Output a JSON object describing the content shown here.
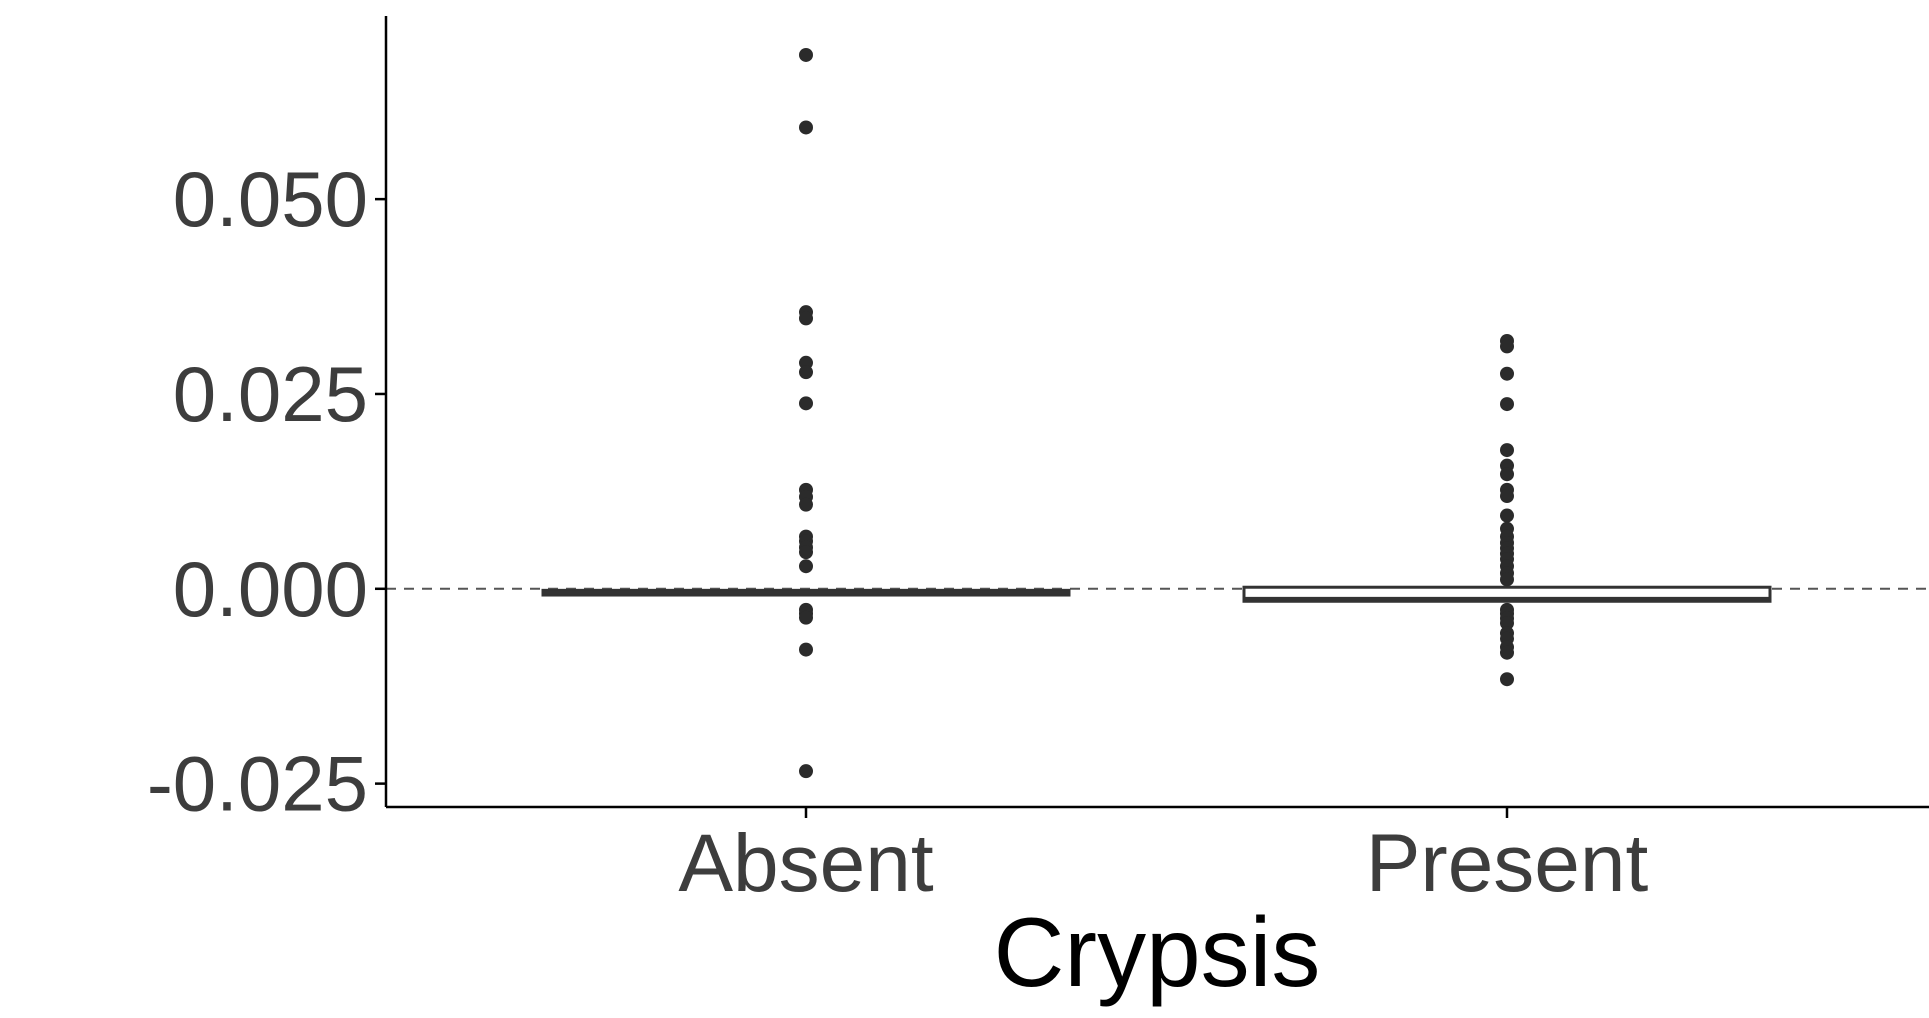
{
  "chart_data": {
    "type": "box",
    "xlabel": "Crypsis",
    "ylabel": "",
    "categories": [
      "Absent",
      "Present"
    ],
    "ylim": [
      -0.028,
      0.0735
    ],
    "yticks": [
      -0.025,
      0.0,
      0.025,
      0.05
    ],
    "ytick_labels": [
      "-0.025",
      "0.000",
      "0.025",
      "0.050"
    ],
    "reference_line": {
      "y": 0.0,
      "style": "dashed"
    },
    "grid": false,
    "boxes": [
      {
        "category": "Absent",
        "q1": -0.0008,
        "median": -0.0005,
        "q3": -0.0002,
        "whisker_low": -0.0008,
        "whisker_high": -0.0002,
        "outliers": [
          0.0685,
          0.0592,
          0.0355,
          0.0347,
          0.029,
          0.0278,
          0.0238,
          0.0127,
          0.0118,
          0.0108,
          0.0067,
          0.0061,
          0.0053,
          0.0047,
          0.0029,
          -0.0027,
          -0.0032,
          -0.0037,
          -0.0078,
          -0.0234
        ]
      },
      {
        "category": "Present",
        "q1": -0.0016,
        "median": -0.0013,
        "q3": 0.0002,
        "whisker_low": -0.0016,
        "whisker_high": 0.0002,
        "outliers": [
          0.0318,
          0.0311,
          0.0276,
          0.0237,
          0.0178,
          0.0158,
          0.0147,
          0.0127,
          0.0119,
          0.0094,
          0.0077,
          0.0067,
          0.0059,
          0.0052,
          0.0045,
          0.0038,
          0.0029,
          0.002,
          0.0012,
          -0.0027,
          -0.0032,
          -0.0038,
          -0.0044,
          -0.0057,
          -0.0064,
          -0.0075,
          -0.0082,
          -0.0116
        ]
      }
    ],
    "colors": {
      "box_fill": "#ffffff",
      "box_stroke": "#333333",
      "point": "#2b2b2b",
      "axis": "#000000",
      "ref_line": "#555555"
    }
  }
}
